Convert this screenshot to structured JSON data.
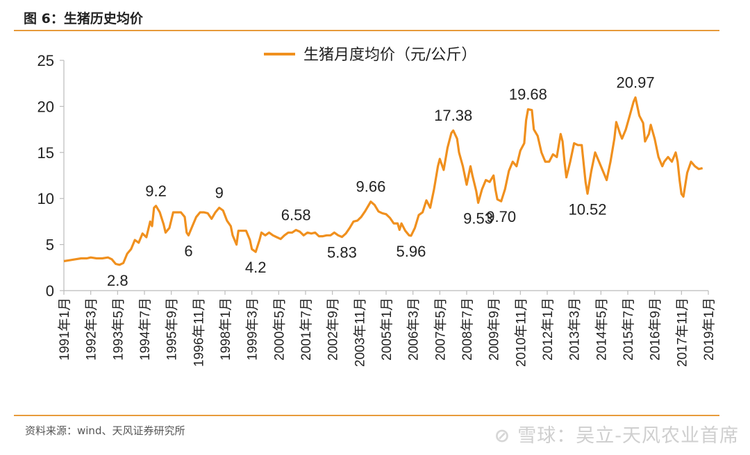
{
  "header": {
    "title": "图 6：生猪历史均价"
  },
  "footer": {
    "source": "资料来源：wind、天风证券研究所",
    "watermark_logo": "⊘",
    "watermark_text": "雪球：吴立-天风农业首席"
  },
  "colors": {
    "line": "#f0901e",
    "rule": "#e79a3a",
    "axis": "#bbbbbb"
  },
  "chart_data": {
    "type": "line",
    "title": "",
    "legend": {
      "label": "生猪月度均价（元/公斤）",
      "position": "top-center"
    },
    "ylim": [
      0,
      25
    ],
    "yticks": [
      0,
      5,
      10,
      15,
      20,
      25
    ],
    "xlim": [
      0,
      336
    ],
    "xticks": [
      {
        "label": "1991年1月",
        "x": 0
      },
      {
        "label": "1992年3月",
        "x": 14
      },
      {
        "label": "1993年5月",
        "x": 28
      },
      {
        "label": "1994年7月",
        "x": 42
      },
      {
        "label": "1995年9月",
        "x": 56
      },
      {
        "label": "1996年11月",
        "x": 70
      },
      {
        "label": "1998年1月",
        "x": 84
      },
      {
        "label": "1999年3月",
        "x": 98
      },
      {
        "label": "2000年5月",
        "x": 112
      },
      {
        "label": "2001年7月",
        "x": 126
      },
      {
        "label": "2002年9月",
        "x": 140
      },
      {
        "label": "2003年11月",
        "x": 154
      },
      {
        "label": "2005年1月",
        "x": 168
      },
      {
        "label": "2006年3月",
        "x": 182
      },
      {
        "label": "2007年5月",
        "x": 196
      },
      {
        "label": "2008年7月",
        "x": 210
      },
      {
        "label": "2009年9月",
        "x": 224
      },
      {
        "label": "2010年11月",
        "x": 238
      },
      {
        "label": "2012年1月",
        "x": 252
      },
      {
        "label": "2013年3月",
        "x": 266
      },
      {
        "label": "2014年5月",
        "x": 280
      },
      {
        "label": "2015年7月",
        "x": 294
      },
      {
        "label": "2016年9月",
        "x": 308
      },
      {
        "label": "2017年11月",
        "x": 322
      },
      {
        "label": "2019年1月",
        "x": 336
      }
    ],
    "series": [
      {
        "name": "生猪月度均价（元/公斤）",
        "points": [
          [
            0,
            3.2
          ],
          [
            3,
            3.3
          ],
          [
            6,
            3.4
          ],
          [
            9,
            3.5
          ],
          [
            12,
            3.5
          ],
          [
            14,
            3.6
          ],
          [
            17,
            3.5
          ],
          [
            20,
            3.5
          ],
          [
            23,
            3.6
          ],
          [
            25,
            3.4
          ],
          [
            27,
            2.9
          ],
          [
            29,
            2.8
          ],
          [
            31,
            3.0
          ],
          [
            33,
            4.0
          ],
          [
            35,
            4.5
          ],
          [
            37,
            5.5
          ],
          [
            39,
            5.2
          ],
          [
            41,
            6.2
          ],
          [
            43,
            5.8
          ],
          [
            45,
            7.5
          ],
          [
            46,
            7.0
          ],
          [
            47,
            9.0
          ],
          [
            48,
            9.2
          ],
          [
            50,
            8.5
          ],
          [
            52,
            7.2
          ],
          [
            53,
            6.3
          ],
          [
            55,
            6.8
          ],
          [
            57,
            8.5
          ],
          [
            59,
            8.5
          ],
          [
            61,
            8.5
          ],
          [
            63,
            8.0
          ],
          [
            64,
            6.3
          ],
          [
            65,
            6.0
          ],
          [
            67,
            7.0
          ],
          [
            69,
            8.0
          ],
          [
            71,
            8.5
          ],
          [
            73,
            8.5
          ],
          [
            75,
            8.4
          ],
          [
            77,
            7.8
          ],
          [
            79,
            8.5
          ],
          [
            81,
            9.0
          ],
          [
            83,
            8.7
          ],
          [
            85,
            7.6
          ],
          [
            87,
            7.0
          ],
          [
            88,
            6.0
          ],
          [
            90,
            5.0
          ],
          [
            91,
            6.5
          ],
          [
            93,
            6.5
          ],
          [
            95,
            6.5
          ],
          [
            97,
            5.5
          ],
          [
            98,
            4.5
          ],
          [
            100,
            4.2
          ],
          [
            102,
            5.5
          ],
          [
            103,
            6.3
          ],
          [
            105,
            6.0
          ],
          [
            107,
            6.3
          ],
          [
            109,
            6.0
          ],
          [
            111,
            5.8
          ],
          [
            113,
            5.6
          ],
          [
            115,
            6.0
          ],
          [
            117,
            6.3
          ],
          [
            119,
            6.3
          ],
          [
            121,
            6.58
          ],
          [
            123,
            6.4
          ],
          [
            125,
            6.0
          ],
          [
            127,
            6.3
          ],
          [
            129,
            6.2
          ],
          [
            131,
            6.3
          ],
          [
            133,
            5.9
          ],
          [
            135,
            5.9
          ],
          [
            137,
            6.0
          ],
          [
            139,
            6.0
          ],
          [
            141,
            6.3
          ],
          [
            143,
            6.0
          ],
          [
            145,
            5.83
          ],
          [
            147,
            6.2
          ],
          [
            149,
            6.8
          ],
          [
            151,
            7.5
          ],
          [
            153,
            7.6
          ],
          [
            155,
            8.0
          ],
          [
            157,
            8.6
          ],
          [
            159,
            9.3
          ],
          [
            160,
            9.66
          ],
          [
            162,
            9.3
          ],
          [
            164,
            8.6
          ],
          [
            166,
            8.4
          ],
          [
            168,
            8.3
          ],
          [
            170,
            7.9
          ],
          [
            172,
            7.3
          ],
          [
            174,
            7.3
          ],
          [
            175,
            6.6
          ],
          [
            176,
            7.3
          ],
          [
            178,
            6.5
          ],
          [
            180,
            6.0
          ],
          [
            181,
            5.96
          ],
          [
            183,
            6.8
          ],
          [
            185,
            8.2
          ],
          [
            187,
            8.5
          ],
          [
            189,
            9.8
          ],
          [
            191,
            9.0
          ],
          [
            193,
            11.0
          ],
          [
            195,
            13.5
          ],
          [
            196,
            14.3
          ],
          [
            198,
            13.1
          ],
          [
            200,
            15.5
          ],
          [
            202,
            17.1
          ],
          [
            203,
            17.38
          ],
          [
            205,
            16.5
          ],
          [
            206,
            15.0
          ],
          [
            208,
            13.5
          ],
          [
            210,
            11.5
          ],
          [
            212,
            13.5
          ],
          [
            213,
            12.5
          ],
          [
            215,
            10.8
          ],
          [
            216,
            9.53
          ],
          [
            218,
            11.0
          ],
          [
            220,
            12.0
          ],
          [
            222,
            11.8
          ],
          [
            224,
            12.5
          ],
          [
            225,
            11.0
          ],
          [
            226,
            9.9
          ],
          [
            228,
            9.7
          ],
          [
            230,
            11.0
          ],
          [
            232,
            13.0
          ],
          [
            234,
            14.0
          ],
          [
            236,
            13.5
          ],
          [
            238,
            15.2
          ],
          [
            240,
            16.0
          ],
          [
            241,
            18.5
          ],
          [
            242,
            19.68
          ],
          [
            244,
            19.6
          ],
          [
            245,
            17.5
          ],
          [
            247,
            16.8
          ],
          [
            249,
            15.0
          ],
          [
            251,
            14.0
          ],
          [
            253,
            14.0
          ],
          [
            255,
            14.8
          ],
          [
            257,
            14.5
          ],
          [
            259,
            17.0
          ],
          [
            260,
            16.2
          ],
          [
            261,
            14.0
          ],
          [
            262,
            12.3
          ],
          [
            264,
            14.0
          ],
          [
            266,
            16.0
          ],
          [
            268,
            15.8
          ],
          [
            270,
            15.8
          ],
          [
            272,
            11.8
          ],
          [
            273,
            10.52
          ],
          [
            275,
            13.0
          ],
          [
            277,
            15.0
          ],
          [
            279,
            14.0
          ],
          [
            281,
            13.0
          ],
          [
            283,
            12.0
          ],
          [
            285,
            14.0
          ],
          [
            287,
            16.5
          ],
          [
            288,
            18.3
          ],
          [
            290,
            17.0
          ],
          [
            291,
            16.5
          ],
          [
            293,
            17.5
          ],
          [
            295,
            19.0
          ],
          [
            297,
            20.5
          ],
          [
            298,
            20.97
          ],
          [
            300,
            19.0
          ],
          [
            302,
            18.2
          ],
          [
            303,
            16.2
          ],
          [
            305,
            17.0
          ],
          [
            306,
            18.0
          ],
          [
            308,
            16.5
          ],
          [
            310,
            14.5
          ],
          [
            312,
            13.5
          ],
          [
            313,
            14.0
          ],
          [
            315,
            14.5
          ],
          [
            317,
            14.0
          ],
          [
            319,
            15.0
          ],
          [
            320,
            14.0
          ],
          [
            321,
            12.0
          ],
          [
            322,
            10.5
          ],
          [
            323,
            10.2
          ],
          [
            325,
            12.8
          ],
          [
            327,
            14.0
          ],
          [
            329,
            13.5
          ],
          [
            331,
            13.2
          ],
          [
            333,
            13.3
          ]
        ]
      }
    ],
    "annotations": [
      {
        "x": 28,
        "y": 2.8,
        "label": "2.8",
        "pos": "below"
      },
      {
        "x": 48,
        "y": 9.2,
        "label": "9.2",
        "pos": "above"
      },
      {
        "x": 65,
        "y": 6.0,
        "label": "6",
        "pos": "below"
      },
      {
        "x": 81,
        "y": 9.0,
        "label": "9",
        "pos": "above"
      },
      {
        "x": 100,
        "y": 4.2,
        "label": "4.2",
        "pos": "below"
      },
      {
        "x": 121,
        "y": 6.58,
        "label": "6.58",
        "pos": "above"
      },
      {
        "x": 145,
        "y": 5.83,
        "label": "5.83",
        "pos": "below"
      },
      {
        "x": 160,
        "y": 9.66,
        "label": "9.66",
        "pos": "above"
      },
      {
        "x": 181,
        "y": 5.96,
        "label": "5.96",
        "pos": "below"
      },
      {
        "x": 203,
        "y": 17.38,
        "label": "17.38",
        "pos": "above"
      },
      {
        "x": 216,
        "y": 9.53,
        "label": "9.53",
        "pos": "below"
      },
      {
        "x": 228,
        "y": 9.7,
        "label": "9.70",
        "pos": "below"
      },
      {
        "x": 242,
        "y": 19.68,
        "label": "19.68",
        "pos": "above"
      },
      {
        "x": 273,
        "y": 10.52,
        "label": "10.52",
        "pos": "below"
      },
      {
        "x": 298,
        "y": 20.97,
        "label": "20.97",
        "pos": "above"
      }
    ]
  }
}
